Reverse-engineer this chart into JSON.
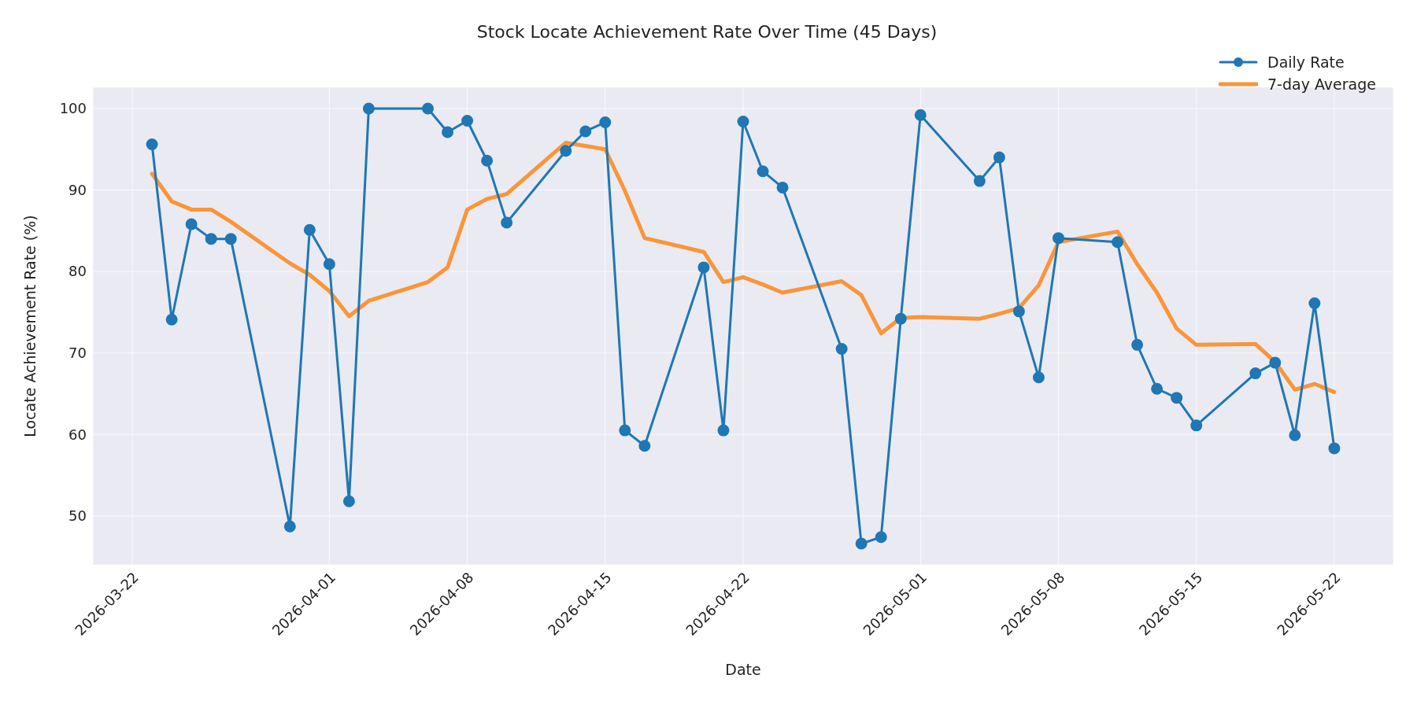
{
  "chart_data": {
    "type": "line",
    "title": "Stock Locate Achievement Rate Over Time (45 Days)",
    "xlabel": "Date",
    "ylabel": "Locate Achievement Rate (%)",
    "x": [
      "2026-03-23",
      "2026-03-24",
      "2026-03-25",
      "2026-03-26",
      "2026-03-27",
      "2026-03-30",
      "2026-03-31",
      "2026-04-01",
      "2026-04-02",
      "2026-04-03",
      "2026-04-06",
      "2026-04-07",
      "2026-04-08",
      "2026-04-09",
      "2026-04-10",
      "2026-04-13",
      "2026-04-14",
      "2026-04-15",
      "2026-04-16",
      "2026-04-17",
      "2026-04-20",
      "2026-04-21",
      "2026-04-22",
      "2026-04-23",
      "2026-04-24",
      "2026-04-27",
      "2026-04-28",
      "2026-04-29",
      "2026-04-30",
      "2026-05-01",
      "2026-05-04",
      "2026-05-05",
      "2026-05-06",
      "2026-05-07",
      "2026-05-08",
      "2026-05-11",
      "2026-05-12",
      "2026-05-13",
      "2026-05-14",
      "2026-05-15",
      "2026-05-18",
      "2026-05-19",
      "2026-05-20",
      "2026-05-21",
      "2026-05-22"
    ],
    "series": [
      {
        "name": "Daily Rate",
        "color": "#1f77b4",
        "marker": "circle",
        "values": [
          95.6,
          74.1,
          85.8,
          84.0,
          84.0,
          48.7,
          85.1,
          80.9,
          51.8,
          100,
          100,
          97.1,
          98.5,
          93.6,
          86.0,
          94.8,
          97.2,
          98.3,
          60.5,
          58.6,
          80.5,
          60.5,
          98.4,
          92.3,
          90.3,
          70.5,
          46.6,
          47.4,
          74.2,
          99.2,
          91.1,
          94.0,
          75.1,
          67.0,
          84.1,
          83.6,
          71.0,
          65.6,
          64.5,
          61.1,
          67.5,
          68.8,
          59.9,
          76.1,
          58.3
        ]
      },
      {
        "name": "7-day Average",
        "color": "#fa9538",
        "marker": "none",
        "values": [
          92.0,
          88.6,
          87.6,
          87.6,
          86.1,
          81.0,
          79.6,
          77.6,
          74.5,
          76.4,
          78.7,
          80.5,
          87.6,
          88.9,
          89.5,
          95.8,
          95.4,
          95.0,
          89.9,
          84.1,
          82.4,
          78.7,
          79.3,
          78.4,
          77.4,
          78.8,
          77.1,
          72.4,
          74.3,
          74.4,
          74.2,
          74.8,
          75.5,
          78.3,
          83.6,
          84.9,
          80.9,
          77.4,
          73.0,
          71.0,
          71.1,
          68.9,
          65.5,
          66.2,
          65.2
        ]
      }
    ],
    "xlim": [
      "2026-03-20",
      "2026-05-25"
    ],
    "xticks": [
      "2026-03-22",
      "2026-04-01",
      "2026-04-08",
      "2026-04-15",
      "2026-04-22",
      "2026-05-01",
      "2026-05-08",
      "2026-05-15",
      "2026-05-22"
    ],
    "ylim": [
      44,
      102.6
    ],
    "yticks": [
      50,
      60,
      70,
      80,
      90,
      100
    ],
    "grid": true,
    "legend": "top right",
    "line_style": "solid"
  }
}
